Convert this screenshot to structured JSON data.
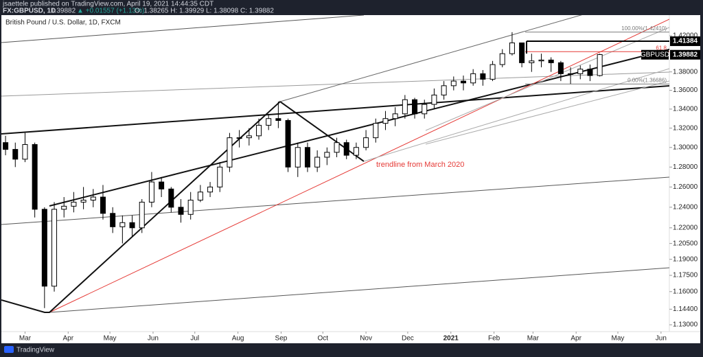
{
  "header": {
    "publisher": "jsaettele published on TradingView.com, April 19, 2021 14:44:35 CDT",
    "symbol": "FX:GBPUSD, 1D",
    "last": "1.39882",
    "change": "▲ +0.01557 (+1.13%)",
    "ohlc": "O: 1.38265 H: 1.39929 L: 1.38098 C: 1.39882"
  },
  "chart_data": {
    "type": "candlestick",
    "title": "British Pound / U.S. Dollar, 1D, FXCM",
    "x": [
      -14,
      -7,
      0,
      7,
      14,
      21,
      28,
      35,
      42,
      49,
      56,
      63,
      70,
      77,
      84,
      91,
      98,
      105,
      112,
      119,
      126,
      133,
      140,
      147,
      154,
      161,
      168,
      175,
      182,
      189,
      196,
      203,
      210,
      217,
      224,
      231,
      238,
      245,
      252,
      259,
      266,
      273,
      280,
      287,
      294,
      301,
      308,
      315,
      322,
      329,
      336,
      343,
      350,
      357,
      364,
      371,
      378,
      385,
      392,
      399,
      406,
      413
    ],
    "open": [
      1.305,
      1.298,
      1.288,
      1.303,
      1.238,
      1.165,
      1.238,
      1.241,
      1.245,
      1.247,
      1.25,
      1.234,
      1.221,
      1.225,
      1.22,
      1.245,
      1.265,
      1.258,
      1.24,
      1.233,
      1.247,
      1.255,
      1.26,
      1.28,
      1.31,
      1.31,
      1.312,
      1.323,
      1.33,
      1.328,
      1.28,
      1.3,
      1.28,
      1.29,
      1.295,
      1.305,
      1.292,
      1.3,
      1.31,
      1.325,
      1.33,
      1.335,
      1.35,
      1.335,
      1.345,
      1.355,
      1.365,
      1.37,
      1.368,
      1.378,
      1.372,
      1.388,
      1.4,
      1.412,
      1.39,
      1.392,
      1.393,
      1.39,
      1.378,
      1.378,
      1.383,
      1.376
    ],
    "high": [
      1.312,
      1.305,
      1.315,
      1.305,
      1.24,
      1.245,
      1.25,
      1.255,
      1.26,
      1.258,
      1.262,
      1.24,
      1.232,
      1.232,
      1.248,
      1.275,
      1.27,
      1.26,
      1.248,
      1.255,
      1.262,
      1.265,
      1.285,
      1.315,
      1.318,
      1.32,
      1.33,
      1.335,
      1.348,
      1.33,
      1.305,
      1.305,
      1.297,
      1.3,
      1.31,
      1.308,
      1.305,
      1.318,
      1.33,
      1.338,
      1.342,
      1.355,
      1.352,
      1.35,
      1.362,
      1.37,
      1.375,
      1.376,
      1.383,
      1.382,
      1.392,
      1.405,
      1.424,
      1.412,
      1.4,
      1.4,
      1.396,
      1.392,
      1.385,
      1.387,
      1.388,
      1.4
    ],
    "low": [
      1.292,
      1.28,
      1.285,
      1.23,
      1.145,
      1.16,
      1.23,
      1.235,
      1.238,
      1.24,
      1.228,
      1.215,
      1.205,
      1.212,
      1.215,
      1.24,
      1.25,
      1.235,
      1.225,
      1.228,
      1.245,
      1.25,
      1.255,
      1.275,
      1.3,
      1.302,
      1.308,
      1.318,
      1.32,
      1.275,
      1.27,
      1.275,
      1.275,
      1.282,
      1.29,
      1.288,
      1.288,
      1.297,
      1.305,
      1.318,
      1.322,
      1.33,
      1.33,
      1.33,
      1.34,
      1.35,
      1.36,
      1.36,
      1.365,
      1.365,
      1.37,
      1.385,
      1.398,
      1.385,
      1.38,
      1.385,
      1.38,
      1.37,
      1.367,
      1.372,
      1.37,
      1.375
    ],
    "close": [
      1.298,
      1.288,
      1.303,
      1.238,
      1.165,
      1.238,
      1.241,
      1.245,
      1.247,
      1.25,
      1.234,
      1.221,
      1.225,
      1.22,
      1.245,
      1.265,
      1.258,
      1.24,
      1.233,
      1.247,
      1.255,
      1.26,
      1.28,
      1.31,
      1.31,
      1.312,
      1.323,
      1.33,
      1.328,
      1.28,
      1.3,
      1.28,
      1.29,
      1.295,
      1.305,
      1.292,
      1.3,
      1.31,
      1.325,
      1.33,
      1.335,
      1.35,
      1.335,
      1.345,
      1.355,
      1.365,
      1.37,
      1.368,
      1.378,
      1.372,
      1.388,
      1.4,
      1.412,
      1.39,
      1.392,
      1.393,
      1.39,
      1.378,
      1.378,
      1.383,
      1.376,
      1.399
    ],
    "up_color": "#ffffff",
    "down_color": "#000000",
    "xlim": [
      -17,
      463
    ],
    "xticks": [
      {
        "value": 0,
        "label": "Mar"
      },
      {
        "value": 31,
        "label": "Apr"
      },
      {
        "value": 61,
        "label": "May"
      },
      {
        "value": 92,
        "label": "Jun"
      },
      {
        "value": 122,
        "label": "Jul"
      },
      {
        "value": 153,
        "label": "Aug"
      },
      {
        "value": 184,
        "label": "Sep"
      },
      {
        "value": 214,
        "label": "Oct"
      },
      {
        "value": 245,
        "label": "Nov"
      },
      {
        "value": 275,
        "label": "Dec"
      },
      {
        "value": 306,
        "label": "2021"
      },
      {
        "value": 337,
        "label": "Feb"
      },
      {
        "value": 365,
        "label": "Mar"
      },
      {
        "value": 396,
        "label": "Apr"
      },
      {
        "value": 426,
        "label": "May"
      },
      {
        "value": 457,
        "label": "Jun"
      }
    ],
    "ylim": [
      1.1227,
      1.4449
    ],
    "log_scale": true,
    "yticks": [
      {
        "value": 1.42,
        "label": "1.42000"
      },
      {
        "value": 1.38,
        "label": "1.38000"
      },
      {
        "value": 1.36,
        "label": "1.36000"
      },
      {
        "value": 1.34,
        "label": "1.34000"
      },
      {
        "value": 1.32,
        "label": "1.32000"
      },
      {
        "value": 1.3,
        "label": "1.30000"
      },
      {
        "value": 1.28,
        "label": "1.28000"
      },
      {
        "value": 1.26,
        "label": "1.26000"
      },
      {
        "value": 1.24,
        "label": "1.24000"
      },
      {
        "value": 1.22,
        "label": "1.22000"
      },
      {
        "value": 1.205,
        "label": "1.20500"
      },
      {
        "value": 1.19,
        "label": "1.19000"
      },
      {
        "value": 1.175,
        "label": "1.17500"
      },
      {
        "value": 1.16,
        "label": "1.16000"
      },
      {
        "value": 1.144,
        "label": "1.14400"
      },
      {
        "value": 1.13,
        "label": "1.13000"
      }
    ],
    "fib_levels": [
      {
        "value": 1.4241,
        "label": "100.00%(1.42410)",
        "color": "#787878"
      },
      {
        "value": 1.40223,
        "label": "61.8",
        "color": "#e53935"
      },
      {
        "value": 1.36686,
        "label": "0.00%(1.36686)",
        "color": "#787878"
      }
    ],
    "level_line": {
      "value": 1.41384,
      "label": "1.41384"
    },
    "last_price": {
      "name": "GBPUSD",
      "value": 1.39882,
      "label": "1.39882"
    },
    "annotation": "trendline from March 2020"
  },
  "footer": {
    "brand": "TradingView"
  }
}
